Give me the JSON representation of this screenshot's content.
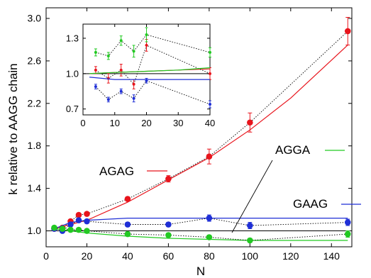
{
  "chart_data": [
    {
      "type": "scatter",
      "xlabel": "N",
      "ylabel": "k relative to AAGG chain",
      "xlim": [
        0,
        150
      ],
      "ylim": [
        0.85,
        3.1
      ],
      "xticks": [
        0,
        20,
        40,
        60,
        80,
        100,
        120,
        140
      ],
      "yticks": [
        1.0,
        1.4,
        1.8,
        2.2,
        2.6,
        3.0
      ],
      "reference_line": 1.0,
      "colors": {
        "AGAG": "#e8141c",
        "GAAG": "#1f2fd6",
        "AGGA": "#22c922"
      },
      "series": [
        {
          "name": "AGAG",
          "x": [
            4,
            8,
            12,
            16,
            20,
            40,
            60,
            80,
            100,
            148
          ],
          "values": [
            1.02,
            1.03,
            1.09,
            1.15,
            1.16,
            1.3,
            1.49,
            1.7,
            2.02,
            2.88
          ],
          "errors": [
            0.01,
            0.01,
            0.01,
            0.01,
            0.01,
            0.02,
            0.03,
            0.07,
            0.09,
            0.13
          ],
          "fit_x": [
            4,
            20,
            40,
            60,
            80,
            100,
            120,
            148
          ],
          "fit_values": [
            1.02,
            1.1,
            1.27,
            1.48,
            1.69,
            1.95,
            2.25,
            2.75
          ]
        },
        {
          "name": "GAAG",
          "x": [
            4,
            8,
            12,
            16,
            20,
            40,
            60,
            80,
            100,
            148
          ],
          "values": [
            1.02,
            1.0,
            1.06,
            1.1,
            1.09,
            1.06,
            1.06,
            1.12,
            1.05,
            1.08
          ],
          "errors": [
            0.01,
            0.01,
            0.01,
            0.01,
            0.01,
            0.02,
            0.02,
            0.03,
            0.03,
            0.03
          ],
          "fit_x": [
            4,
            12,
            20,
            40,
            60,
            80,
            100,
            148
          ],
          "fit_values": [
            1.02,
            1.08,
            1.1,
            1.12,
            1.12,
            1.12,
            1.12,
            1.12
          ]
        },
        {
          "name": "AGGA",
          "x": [
            4,
            8,
            12,
            16,
            20,
            40,
            60,
            80,
            100,
            148
          ],
          "values": [
            1.03,
            1.02,
            1.01,
            1.01,
            1.0,
            0.97,
            0.96,
            0.94,
            0.91,
            0.97
          ],
          "errors": [
            0.01,
            0.01,
            0.01,
            0.01,
            0.01,
            0.02,
            0.02,
            0.02,
            0.02,
            0.03
          ],
          "fit_x": [
            4,
            20,
            40,
            60,
            80,
            100,
            148
          ],
          "fit_values": [
            1.02,
            0.98,
            0.95,
            0.93,
            0.92,
            0.91,
            0.91
          ]
        }
      ]
    },
    {
      "type": "scatter",
      "xlim": [
        0,
        40
      ],
      "ylim": [
        0.65,
        1.42
      ],
      "xticks": [
        0,
        10,
        20,
        30,
        40
      ],
      "yticks": [
        0.7,
        1.0,
        1.3
      ],
      "reference_line": 1.0,
      "series": [
        {
          "name": "AGAG",
          "x": [
            4,
            8,
            12,
            16,
            20,
            40
          ],
          "values": [
            1.03,
            0.96,
            1.03,
            0.91,
            1.24,
            1.0
          ],
          "errors": [
            0.03,
            0.04,
            0.05,
            0.04,
            0.05,
            0.05
          ],
          "fit_x": [
            2,
            10,
            20,
            30,
            40
          ],
          "fit_values": [
            1.0,
            1.01,
            1.02,
            1.03,
            1.04
          ]
        },
        {
          "name": "GAAG",
          "x": [
            4,
            8,
            12,
            16,
            20,
            40
          ],
          "values": [
            0.89,
            0.78,
            0.85,
            0.79,
            0.94,
            0.74
          ],
          "errors": [
            0.02,
            0.02,
            0.02,
            0.03,
            0.02,
            0.03
          ],
          "fit_x": [
            2,
            10,
            20,
            30,
            40
          ],
          "fit_values": [
            0.97,
            0.95,
            0.95,
            0.95,
            0.95
          ]
        },
        {
          "name": "AGGA",
          "x": [
            4,
            8,
            12,
            16,
            20,
            40
          ],
          "values": [
            1.18,
            1.15,
            1.28,
            1.19,
            1.33,
            1.18
          ],
          "errors": [
            0.03,
            0.03,
            0.04,
            0.05,
            0.06,
            0.04
          ],
          "fit_x": [
            2,
            10,
            20,
            30,
            40
          ],
          "fit_values": [
            1.0,
            1.01,
            1.02,
            1.03,
            1.05
          ]
        }
      ]
    }
  ]
}
